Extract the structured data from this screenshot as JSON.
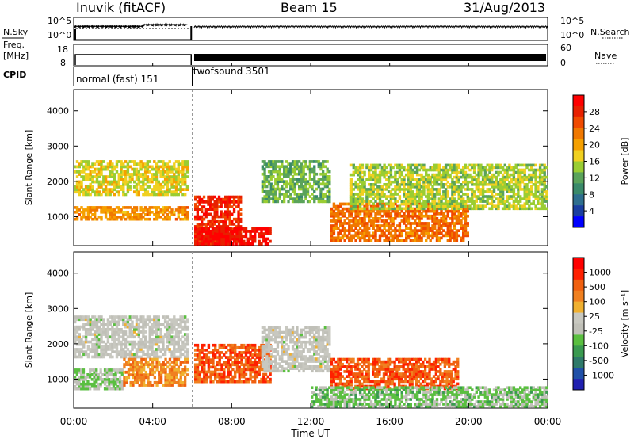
{
  "header": {
    "station": "Inuvik (fitACF)",
    "beam": "Beam 15",
    "date": "31/Aug/2013"
  },
  "top_panel": {
    "left_label_1": "N.Sky",
    "right_label_1": "N.Search",
    "left_label_2": "Freq.",
    "left_label_2b": "[MHz]",
    "right_label_2": "Nave",
    "cpid_label": "CPID",
    "nsky_ticks": [
      "10^5",
      "10^0"
    ],
    "nsky_ticks_right": [
      "10^5",
      "10^0"
    ],
    "freq_ticks": [
      "18",
      "8"
    ],
    "nave_ticks": [
      "60",
      "0"
    ],
    "modes": [
      {
        "name": "normal (fast)",
        "id": "151"
      },
      {
        "name": "twofsound",
        "id": "3501"
      }
    ]
  },
  "x_axis": {
    "label": "Time UT",
    "ticks": [
      "00:00",
      "04:00",
      "08:00",
      "12:00",
      "16:00",
      "20:00",
      "00:00"
    ]
  },
  "y_axis": {
    "label": "Slant Range [km]",
    "ticks": [
      "4000",
      "3000",
      "2000",
      "1000"
    ]
  },
  "power_colorbar": {
    "label": "Power [dB]",
    "ticks": [
      "28",
      "24",
      "20",
      "16",
      "12",
      "8",
      "4"
    ],
    "colors": [
      "#0000ff",
      "#1a3ea0",
      "#2e6e8e",
      "#3a8a6a",
      "#5aa35a",
      "#9acd32",
      "#f0d020",
      "#f5a000",
      "#f07800",
      "#f04a00",
      "#e82000",
      "#ff0000"
    ]
  },
  "velocity_colorbar": {
    "label": "Velocity [m s⁻¹]",
    "ticks": [
      "1000",
      "500",
      "100",
      "25",
      "-25",
      "-100",
      "-500",
      "-1000"
    ],
    "colors": [
      "#2020b0",
      "#2050a8",
      "#2e7a6a",
      "#3a9a50",
      "#5abf40",
      "#c0c0b8",
      "#c8c8c0",
      "#f0b030",
      "#f08020",
      "#f06010",
      "#ff2000",
      "#ff0000"
    ]
  },
  "chart_data": [
    {
      "type": "line",
      "title": "N.Sky / N.Search",
      "x": [
        "00:00",
        "06:00",
        "24:00"
      ],
      "series": [
        {
          "name": "N.Sky",
          "values": [
            10000,
            0,
            50000
          ]
        }
      ]
    },
    {
      "type": "line",
      "title": "Freq. [MHz] / Nave",
      "x": [
        "00:00",
        "06:00",
        "24:00"
      ],
      "series": [
        {
          "name": "Freq.",
          "values": [
            18,
            8,
            18
          ]
        }
      ]
    },
    {
      "type": "heatmap",
      "title": "Power [dB]",
      "xlabel": "Time UT",
      "ylabel": "Slant Range [km]",
      "xlim": [
        0,
        24
      ],
      "ylim": [
        180,
        4600
      ],
      "clim": [
        0,
        30
      ],
      "x_tick_labels": [
        "00:00",
        "04:00",
        "08:00",
        "12:00",
        "16:00",
        "20:00",
        "00:00"
      ],
      "y_tick_labels": [
        "1000",
        "2000",
        "3000",
        "4000"
      ],
      "regions": [
        {
          "t": [
            0.0,
            5.8
          ],
          "r": [
            900,
            1300
          ],
          "value": 20
        },
        {
          "t": [
            0.0,
            5.8
          ],
          "r": [
            1600,
            2600
          ],
          "value": 16
        },
        {
          "t": [
            6.1,
            8.5
          ],
          "r": [
            200,
            1600
          ],
          "value": 26
        },
        {
          "t": [
            6.1,
            10.0
          ],
          "r": [
            200,
            700
          ],
          "value": 28
        },
        {
          "t": [
            9.5,
            13.0
          ],
          "r": [
            1400,
            2600
          ],
          "value": 12
        },
        {
          "t": [
            13.0,
            20.0
          ],
          "r": [
            300,
            1400
          ],
          "value": 22
        },
        {
          "t": [
            14.0,
            24.0
          ],
          "r": [
            1200,
            2500
          ],
          "value": 14
        }
      ]
    },
    {
      "type": "heatmap",
      "title": "Velocity [m s⁻¹]",
      "xlabel": "Time UT",
      "ylabel": "Slant Range [km]",
      "xlim": [
        0,
        24
      ],
      "ylim": [
        180,
        4600
      ],
      "clim": [
        -1000,
        1000
      ],
      "x_tick_labels": [
        "00:00",
        "04:00",
        "08:00",
        "12:00",
        "16:00",
        "20:00",
        "00:00"
      ],
      "y_tick_labels": [
        "1000",
        "2000",
        "3000",
        "4000"
      ],
      "regions": [
        {
          "t": [
            0.0,
            5.8
          ],
          "r": [
            1600,
            2800
          ],
          "value": 0
        },
        {
          "t": [
            0.0,
            2.5
          ],
          "r": [
            700,
            1300
          ],
          "value": -150
        },
        {
          "t": [
            2.5,
            5.8
          ],
          "r": [
            800,
            1600
          ],
          "value": 400
        },
        {
          "t": [
            6.1,
            10.0
          ],
          "r": [
            900,
            2000
          ],
          "value": 600
        },
        {
          "t": [
            9.5,
            13.0
          ],
          "r": [
            1200,
            2500
          ],
          "value": 0
        },
        {
          "t": [
            13.0,
            19.5
          ],
          "r": [
            700,
            1600
          ],
          "value": 600
        },
        {
          "t": [
            12.0,
            24.0
          ],
          "r": [
            200,
            800
          ],
          "value": -200
        }
      ]
    }
  ]
}
